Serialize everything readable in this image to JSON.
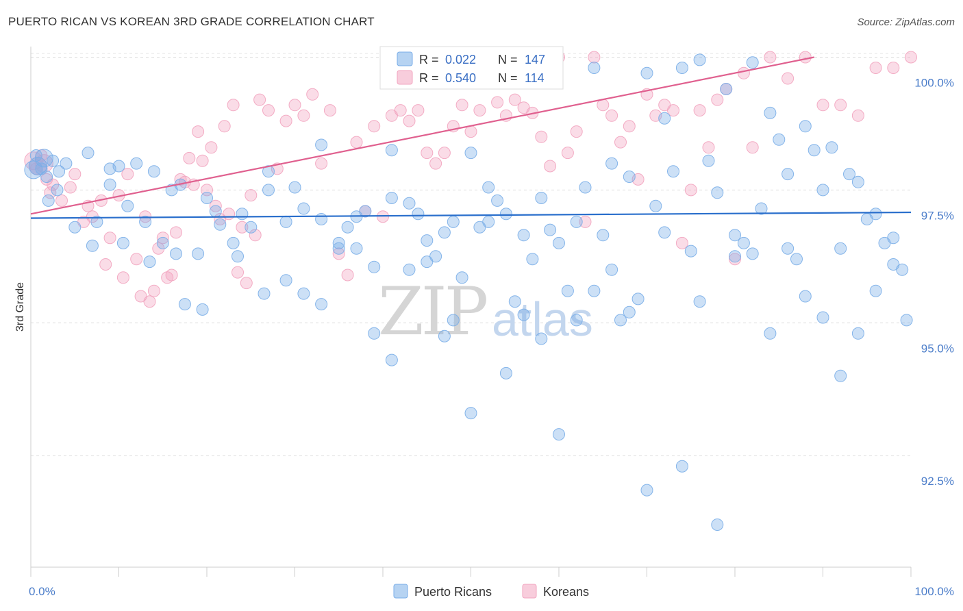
{
  "title": "PUERTO RICAN VS KOREAN 3RD GRADE CORRELATION CHART",
  "source": "Source: ZipAtlas.com",
  "watermark": {
    "zip": "ZIP",
    "atlas": "atlas"
  },
  "legend": {
    "r_label": "R =",
    "n_label": "N =",
    "series": [
      {
        "name": "Puerto Ricans",
        "r": "0.022",
        "n": "147",
        "color": "#7aaee8",
        "line_color": "#2a6fcc"
      },
      {
        "name": "Koreans",
        "r": "0.540",
        "n": "114",
        "color": "#f2a4bf",
        "line_color": "#e0608f"
      }
    ]
  },
  "chart_data": {
    "type": "scatter",
    "title": "PUERTO RICAN VS KOREAN 3RD GRADE CORRELATION CHART",
    "xlabel": "",
    "ylabel": "3rd Grade",
    "xlim": [
      0,
      100
    ],
    "ylim": [
      90.4,
      100.2
    ],
    "x_tick_labels": [
      "0.0%",
      "100.0%"
    ],
    "y_ticks": [
      92.5,
      95.0,
      97.5,
      100.0
    ],
    "y_tick_labels": [
      "92.5%",
      "95.0%",
      "97.5%",
      "100.0%"
    ],
    "grid": true,
    "series": [
      {
        "name": "Puerto Ricans",
        "trend": {
          "x": [
            0,
            100
          ],
          "y": [
            96.97,
            97.08
          ]
        },
        "points": [
          [
            0.3,
            97.88
          ],
          [
            0.8,
            97.95
          ],
          [
            1.5,
            98.1
          ],
          [
            4,
            98
          ],
          [
            6.5,
            98.2
          ],
          [
            9,
            97.9
          ],
          [
            10,
            97.95
          ],
          [
            12,
            98
          ],
          [
            14,
            97.85
          ],
          [
            16,
            97.5
          ],
          [
            20,
            97.35
          ],
          [
            24,
            97.05
          ],
          [
            27,
            97.85
          ],
          [
            30,
            97.55
          ],
          [
            33,
            98.35
          ],
          [
            36,
            96.8
          ],
          [
            38,
            97.1
          ],
          [
            41,
            98.25
          ],
          [
            44,
            97.05
          ],
          [
            46,
            96.25
          ],
          [
            48,
            96.9
          ],
          [
            50,
            98.2
          ],
          [
            52,
            97.55
          ],
          [
            54,
            97.05
          ],
          [
            56,
            96.65
          ],
          [
            58,
            97.35
          ],
          [
            60,
            96.5
          ],
          [
            62,
            96.9
          ],
          [
            64,
            99.8
          ],
          [
            66,
            98.0
          ],
          [
            68,
            97.75
          ],
          [
            70,
            99.7
          ],
          [
            72,
            98.85
          ],
          [
            74,
            99.8
          ],
          [
            76,
            99.95
          ],
          [
            78,
            97.45
          ],
          [
            80,
            96.25
          ],
          [
            82,
            99.9
          ],
          [
            84,
            98.95
          ],
          [
            86,
            97.8
          ],
          [
            88,
            98.7
          ],
          [
            90,
            97.5
          ],
          [
            92,
            96.4
          ],
          [
            94,
            97.65
          ],
          [
            96,
            97.05
          ],
          [
            98,
            96.6
          ],
          [
            99,
            96.0
          ],
          [
            99.5,
            95.05
          ],
          [
            97,
            96.5
          ],
          [
            95,
            96.95
          ],
          [
            93,
            97.8
          ],
          [
            91,
            98.3
          ],
          [
            89,
            98.25
          ],
          [
            87,
            96.2
          ],
          [
            85,
            98.45
          ],
          [
            83,
            97.15
          ],
          [
            81,
            96.5
          ],
          [
            79,
            99.4
          ],
          [
            77,
            98.05
          ],
          [
            75,
            96.35
          ],
          [
            73,
            97.85
          ],
          [
            71,
            97.2
          ],
          [
            69,
            95.45
          ],
          [
            67,
            95.05
          ],
          [
            65,
            96.65
          ],
          [
            63,
            97.55
          ],
          [
            61,
            95.6
          ],
          [
            59,
            96.75
          ],
          [
            57,
            96.2
          ],
          [
            55,
            95.4
          ],
          [
            53,
            97.3
          ],
          [
            51,
            96.8
          ],
          [
            49,
            95.85
          ],
          [
            47,
            96.7
          ],
          [
            45,
            96.15
          ],
          [
            43,
            97.25
          ],
          [
            41,
            97.35
          ],
          [
            39,
            96.05
          ],
          [
            37,
            97.0
          ],
          [
            35,
            96.5
          ],
          [
            33,
            96.95
          ],
          [
            31,
            97.15
          ],
          [
            29,
            96.9
          ],
          [
            27,
            97.5
          ],
          [
            25,
            96.8
          ],
          [
            23,
            96.5
          ],
          [
            21,
            97.1
          ],
          [
            19,
            96.3
          ],
          [
            17,
            97.6
          ],
          [
            15,
            96.5
          ],
          [
            13,
            96.9
          ],
          [
            11,
            97.2
          ],
          [
            9,
            97.6
          ],
          [
            7,
            96.45
          ],
          [
            5,
            96.8
          ],
          [
            3,
            97.5
          ],
          [
            2,
            97.3
          ],
          [
            7.5,
            96.9
          ],
          [
            10.5,
            96.5
          ],
          [
            13.5,
            96.15
          ],
          [
            16.5,
            96.3
          ],
          [
            17.5,
            95.35
          ],
          [
            19.5,
            95.25
          ],
          [
            21.5,
            96.85
          ],
          [
            23.5,
            96.25
          ],
          [
            26.5,
            95.55
          ],
          [
            29,
            95.8
          ],
          [
            31,
            95.55
          ],
          [
            33,
            95.35
          ],
          [
            35,
            96.4
          ],
          [
            37,
            96.4
          ],
          [
            39,
            94.8
          ],
          [
            41,
            94.3
          ],
          [
            43,
            96.0
          ],
          [
            45,
            96.55
          ],
          [
            47,
            94.75
          ],
          [
            48,
            95.05
          ],
          [
            50,
            93.3
          ],
          [
            52,
            96.9
          ],
          [
            54,
            94.05
          ],
          [
            56,
            95.15
          ],
          [
            58,
            94.7
          ],
          [
            60,
            92.9
          ],
          [
            62,
            95.05
          ],
          [
            64,
            95.6
          ],
          [
            66,
            96.0
          ],
          [
            68,
            95.2
          ],
          [
            70,
            91.85
          ],
          [
            72,
            96.7
          ],
          [
            74,
            92.3
          ],
          [
            76,
            95.4
          ],
          [
            78,
            91.2
          ],
          [
            80,
            96.65
          ],
          [
            82,
            96.3
          ],
          [
            84,
            94.8
          ],
          [
            86,
            96.4
          ],
          [
            88,
            95.5
          ],
          [
            90,
            95.1
          ],
          [
            92,
            94.0
          ],
          [
            94,
            94.8
          ],
          [
            96,
            95.6
          ],
          [
            98,
            96.1
          ],
          [
            0.6,
            98.15
          ],
          [
            1.2,
            97.9
          ],
          [
            1.8,
            97.75
          ],
          [
            2.5,
            98.05
          ],
          [
            3.2,
            97.85
          ]
        ]
      },
      {
        "name": "Koreans",
        "trend": {
          "x": [
            0,
            89
          ],
          "y": [
            97.05,
            100.0
          ]
        },
        "points": [
          [
            0.3,
            98.05
          ],
          [
            0.8,
            97.95
          ],
          [
            1.5,
            98.0
          ],
          [
            2.5,
            97.6
          ],
          [
            3.5,
            97.3
          ],
          [
            5,
            97.8
          ],
          [
            6,
            96.9
          ],
          [
            7,
            97.0
          ],
          [
            8,
            97.3
          ],
          [
            9,
            96.6
          ],
          [
            10,
            97.4
          ],
          [
            11,
            97.8
          ],
          [
            12,
            96.2
          ],
          [
            13,
            97.0
          ],
          [
            14,
            95.6
          ],
          [
            15,
            96.6
          ],
          [
            16,
            95.9
          ],
          [
            17,
            97.7
          ],
          [
            18,
            98.1
          ],
          [
            19,
            98.6
          ],
          [
            20,
            97.5
          ],
          [
            21,
            97.2
          ],
          [
            22,
            98.7
          ],
          [
            23,
            99.1
          ],
          [
            24,
            96.8
          ],
          [
            25,
            97.4
          ],
          [
            26,
            99.2
          ],
          [
            27,
            99.0
          ],
          [
            28,
            97.9
          ],
          [
            29,
            98.8
          ],
          [
            30,
            99.1
          ],
          [
            31,
            98.9
          ],
          [
            32,
            99.3
          ],
          [
            33,
            98.0
          ],
          [
            34,
            99.0
          ],
          [
            35,
            96.3
          ],
          [
            36,
            95.9
          ],
          [
            37,
            98.4
          ],
          [
            38,
            97.1
          ],
          [
            39,
            98.7
          ],
          [
            40,
            97.0
          ],
          [
            41,
            98.9
          ],
          [
            42,
            99.0
          ],
          [
            43,
            98.8
          ],
          [
            44,
            99.0
          ],
          [
            45,
            98.2
          ],
          [
            46,
            98.0
          ],
          [
            47,
            98.2
          ],
          [
            48,
            98.7
          ],
          [
            49,
            99.1
          ],
          [
            50,
            98.6
          ],
          [
            51,
            99.0
          ],
          [
            52,
            100.0
          ],
          [
            53,
            99.15
          ],
          [
            54,
            98.9
          ],
          [
            55,
            99.2
          ],
          [
            56,
            99.05
          ],
          [
            57,
            98.95
          ],
          [
            58,
            98.5
          ],
          [
            59,
            97.95
          ],
          [
            60,
            100.0
          ],
          [
            61,
            98.2
          ],
          [
            62,
            98.6
          ],
          [
            63,
            96.9
          ],
          [
            64,
            100.0
          ],
          [
            65,
            99.1
          ],
          [
            66,
            98.9
          ],
          [
            67,
            98.4
          ],
          [
            68,
            98.7
          ],
          [
            69,
            97.7
          ],
          [
            70,
            99.3
          ],
          [
            71,
            98.9
          ],
          [
            72,
            99.1
          ],
          [
            73,
            99.0
          ],
          [
            74,
            96.5
          ],
          [
            75,
            97.5
          ],
          [
            76,
            99.0
          ],
          [
            77,
            98.3
          ],
          [
            78,
            99.2
          ],
          [
            79,
            99.4
          ],
          [
            80,
            96.2
          ],
          [
            81,
            99.7
          ],
          [
            82,
            98.3
          ],
          [
            84,
            100.0
          ],
          [
            86,
            99.6
          ],
          [
            88,
            100.0
          ],
          [
            90,
            99.1
          ],
          [
            92,
            99.1
          ],
          [
            94,
            98.9
          ],
          [
            96,
            99.8
          ],
          [
            98,
            99.8
          ],
          [
            100,
            100.0
          ],
          [
            0.6,
            97.9
          ],
          [
            1.2,
            98.15
          ],
          [
            1.8,
            97.7
          ],
          [
            2.2,
            97.45
          ],
          [
            4.5,
            97.55
          ],
          [
            6.5,
            97.2
          ],
          [
            8.5,
            96.1
          ],
          [
            10.5,
            95.85
          ],
          [
            12.5,
            95.5
          ],
          [
            13.5,
            95.4
          ],
          [
            14.5,
            96.4
          ],
          [
            15.5,
            95.85
          ],
          [
            16.5,
            96.7
          ],
          [
            17.5,
            97.65
          ],
          [
            18.5,
            97.6
          ],
          [
            19.5,
            98.05
          ],
          [
            20.5,
            98.3
          ],
          [
            21.5,
            96.95
          ],
          [
            22.5,
            97.05
          ],
          [
            23.5,
            95.95
          ],
          [
            24.5,
            95.75
          ],
          [
            25.5,
            96.65
          ]
        ]
      }
    ]
  }
}
